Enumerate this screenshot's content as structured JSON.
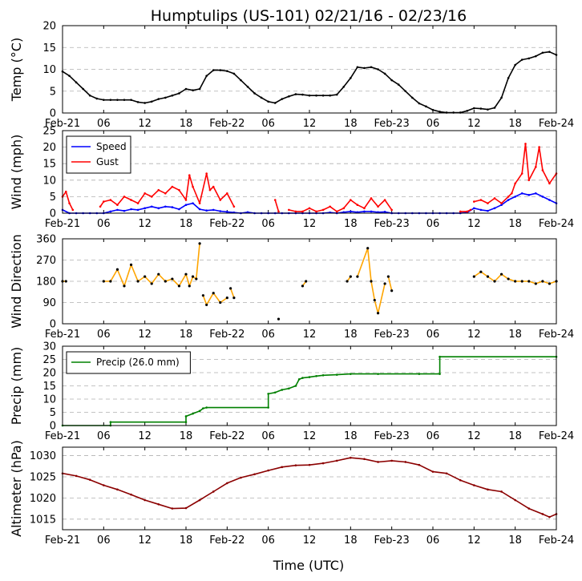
{
  "title": "Humptulips (US-101) 02/21/16 - 02/23/16",
  "xlabel": "Time (UTC)",
  "x_range_hours": [
    0,
    72
  ],
  "x_tick_hours": [
    0,
    6,
    12,
    18,
    24,
    30,
    36,
    42,
    48,
    54,
    60,
    66,
    72
  ],
  "x_tick_labels": [
    "Feb-21",
    "06",
    "12",
    "18",
    "Feb-22",
    "06",
    "12",
    "18",
    "Feb-23",
    "06",
    "12",
    "18",
    "Feb-24"
  ],
  "chart_data": [
    {
      "id": "temp",
      "type": "line",
      "ylabel": "Temp (°C)",
      "ylim": [
        0,
        20
      ],
      "yticks": [
        0,
        5,
        10,
        15,
        20
      ],
      "grid": true,
      "series": [
        {
          "name": "Temp",
          "color": "#000000",
          "x": [
            0,
            1,
            2,
            3,
            4,
            5,
            6,
            7,
            8,
            9,
            10,
            11,
            12,
            13,
            14,
            15,
            16,
            17,
            18,
            19,
            20,
            21,
            22,
            23,
            24,
            25,
            26,
            27,
            28,
            29,
            30,
            31,
            32,
            33,
            34,
            35,
            36,
            37,
            38,
            39,
            40,
            41,
            42,
            43,
            44,
            45,
            46,
            47,
            48,
            49,
            50,
            51,
            52,
            53,
            54,
            55,
            56,
            57,
            58,
            59,
            60,
            61,
            62,
            63,
            64,
            65,
            66,
            67,
            68,
            69,
            70,
            71,
            72
          ],
          "values": [
            9.5,
            8.5,
            7,
            5.5,
            4,
            3.3,
            3,
            3,
            3,
            3,
            3,
            2.5,
            2.3,
            2.6,
            3.2,
            3.5,
            4,
            4.5,
            5.5,
            5.2,
            5.5,
            8.5,
            9.8,
            9.8,
            9.6,
            9,
            7.5,
            6,
            4.5,
            3.5,
            2.6,
            2.3,
            3.2,
            3.8,
            4.3,
            4.2,
            4,
            4,
            4,
            4,
            4.2,
            6,
            8,
            10.5,
            10.3,
            10.5,
            10,
            9,
            7.5,
            6.5,
            5,
            3.5,
            2.2,
            1.5,
            0.7,
            0.3,
            0.1,
            0.1,
            0.1,
            0.5,
            1.1,
            1,
            0.8,
            1.2,
            3.5,
            8,
            11,
            12.2,
            12.5,
            13,
            13.8,
            14,
            13.3
          ]
        }
      ]
    },
    {
      "id": "wind",
      "type": "line",
      "ylabel": "Wind (mph)",
      "ylim": [
        0,
        25
      ],
      "yticks": [
        0,
        5,
        10,
        15,
        20,
        25
      ],
      "grid": true,
      "legend": "top-left",
      "series": [
        {
          "name": "Speed",
          "color": "#0000ff",
          "segments": [
            {
              "x": [
                0,
                1,
                2,
                3,
                4,
                5,
                6,
                7,
                8,
                9,
                10,
                11,
                12,
                13,
                14,
                15,
                16,
                17,
                18,
                19,
                20,
                21,
                22,
                23,
                24,
                25,
                26,
                27,
                28,
                29,
                30,
                31,
                32,
                33,
                34,
                35,
                36,
                37,
                38,
                39,
                40,
                41,
                42,
                43,
                44,
                45,
                46,
                47,
                48,
                49,
                50,
                51,
                52,
                53,
                54,
                55,
                56,
                57,
                58,
                59,
                60,
                61,
                62,
                63,
                64,
                65,
                66,
                67,
                68,
                69,
                70,
                71,
                72
              ],
              "values": [
                1,
                0,
                0,
                0,
                0,
                0,
                0,
                0.5,
                1,
                0.7,
                1.2,
                1,
                1.5,
                2,
                1.5,
                2,
                1.8,
                1.2,
                2.5,
                3,
                1.2,
                0.8,
                1,
                0.6,
                0.4,
                0.2,
                0,
                0.3,
                0,
                0,
                0,
                0,
                0,
                0,
                0,
                0,
                0,
                0,
                0,
                0.2,
                0,
                0.3,
                0.5,
                0.3,
                0.5,
                0.5,
                0.3,
                0.4,
                0,
                0,
                0,
                0,
                0,
                0,
                0,
                0,
                0,
                0,
                0,
                0.2,
                1.5,
                1,
                0.7,
                1.5,
                2.5,
                4,
                5,
                6,
                5.5,
                6,
                5,
                4,
                3
              ]
            }
          ]
        },
        {
          "name": "Gust",
          "color": "#ff0000",
          "segments": [
            {
              "x": [
                0,
                0.5,
                1,
                1.5
              ],
              "values": [
                5,
                6.5,
                3,
                1
              ]
            },
            {
              "x": [
                5.5,
                6,
                7,
                8,
                9,
                10,
                11,
                12,
                13,
                14,
                15,
                16,
                17,
                18,
                18.5,
                19,
                20,
                21,
                21.5,
                22,
                23,
                24,
                25
              ],
              "values": [
                2,
                3.5,
                4,
                2.5,
                5,
                4,
                3,
                6,
                5,
                7,
                6,
                8,
                7,
                4,
                11.5,
                8,
                3,
                12,
                7,
                8,
                4,
                6,
                2
              ]
            },
            {
              "x": [
                31,
                31.5
              ],
              "values": [
                4,
                0.5
              ]
            },
            {
              "x": [
                33,
                34,
                35,
                36,
                37,
                38,
                39,
                40,
                41,
                42,
                43,
                44,
                45,
                46,
                47,
                48
              ],
              "values": [
                1,
                0.5,
                0.5,
                1.5,
                0.5,
                1,
                2,
                0.5,
                1.5,
                4,
                2.5,
                1.5,
                4.5,
                2,
                4,
                1
              ]
            },
            {
              "x": [
                58,
                59,
                59.5
              ],
              "values": [
                0.5,
                0.5,
                1
              ]
            },
            {
              "x": [
                60,
                61,
                62,
                63,
                64,
                65,
                65.5,
                66,
                67,
                67.5,
                68,
                69,
                69.5,
                70,
                71,
                72
              ],
              "values": [
                3.5,
                4,
                3,
                4.5,
                3,
                5,
                6,
                9,
                12,
                21,
                10,
                14,
                20,
                13,
                9,
                12
              ]
            }
          ]
        }
      ]
    },
    {
      "id": "direction",
      "type": "scatter",
      "ylabel": "Wind Direction",
      "ylim": [
        0,
        360
      ],
      "yticks": [
        0,
        90,
        180,
        270,
        360
      ],
      "grid": true,
      "series": [
        {
          "name": "Direction",
          "color": "#ffa500",
          "segments": [
            {
              "x": [
                0,
                0.5
              ],
              "values": [
                180,
                180
              ]
            },
            {
              "x": [
                6,
                7,
                8,
                9,
                10,
                11,
                12,
                13,
                14,
                15,
                16,
                17,
                18,
                18.5,
                19,
                19.5,
                20
              ],
              "values": [
                180,
                180,
                230,
                160,
                250,
                180,
                200,
                170,
                210,
                180,
                190,
                160,
                210,
                160,
                200,
                190,
                340
              ]
            },
            {
              "x": [
                20.5,
                21,
                22,
                23,
                24
              ],
              "values": [
                120,
                80,
                130,
                90,
                110
              ]
            },
            {
              "x": [
                24.5,
                25
              ],
              "values": [
                150,
                110
              ]
            },
            {
              "x": [
                31.5
              ],
              "values": [
                20
              ]
            },
            {
              "x": [
                35,
                35.5
              ],
              "values": [
                160,
                180
              ]
            },
            {
              "x": [
                41.5,
                42
              ],
              "values": [
                180,
                200
              ]
            },
            {
              "x": [
                43,
                44.5,
                45,
                45.5,
                46,
                47
              ],
              "values": [
                200,
                320,
                180,
                100,
                45,
                170
              ]
            },
            {
              "x": [
                47.5,
                48
              ],
              "values": [
                200,
                140
              ]
            },
            {
              "x": [
                60,
                61,
                62,
                63,
                64,
                65,
                66,
                67,
                68,
                69,
                70,
                71,
                72
              ],
              "values": [
                200,
                220,
                200,
                180,
                210,
                190,
                180,
                180,
                180,
                170,
                180,
                170,
                180
              ]
            }
          ]
        }
      ]
    },
    {
      "id": "precip",
      "type": "line",
      "ylabel": "Precip (mm)",
      "ylim": [
        0,
        30
      ],
      "yticks": [
        0,
        5,
        10,
        15,
        20,
        25,
        30
      ],
      "grid": true,
      "legend": "top-left",
      "series": [
        {
          "name": "Precip (26.0 mm)",
          "color": "#008000",
          "x": [
            0,
            7,
            7,
            18,
            18,
            19,
            20,
            20.5,
            21,
            30,
            30,
            31,
            32,
            33,
            34,
            34.5,
            35,
            36,
            37,
            38,
            40,
            42,
            46,
            52,
            55,
            55,
            72
          ],
          "values": [
            0,
            0,
            1.3,
            1.3,
            3.5,
            4.5,
            5.5,
            6.5,
            6.8,
            6.8,
            12,
            12.5,
            13.5,
            14,
            15,
            17.5,
            18,
            18.3,
            18.7,
            19,
            19.2,
            19.5,
            19.5,
            19.5,
            19.5,
            26,
            26
          ]
        }
      ]
    },
    {
      "id": "altimeter",
      "type": "line",
      "ylabel": "Altimeter (hPa)",
      "ylim": [
        1012.5,
        1032
      ],
      "yticks": [
        1015,
        1020,
        1025,
        1030
      ],
      "grid": true,
      "series": [
        {
          "name": "Altimeter",
          "color": "#8b0000",
          "x": [
            0,
            2,
            4,
            6,
            8,
            10,
            12,
            14,
            16,
            18,
            20,
            22,
            24,
            26,
            28,
            30,
            32,
            34,
            36,
            38,
            40,
            42,
            44,
            46,
            48,
            50,
            52,
            54,
            56,
            58,
            60,
            62,
            64,
            66,
            68,
            70,
            71,
            72
          ],
          "values": [
            1025.8,
            1025.2,
            1024.3,
            1023,
            1022,
            1020.8,
            1019.5,
            1018.5,
            1017.5,
            1017.6,
            1019.5,
            1021.5,
            1023.5,
            1024.8,
            1025.6,
            1026.5,
            1027.3,
            1027.7,
            1027.8,
            1028.2,
            1028.8,
            1029.5,
            1029.2,
            1028.5,
            1028.8,
            1028.5,
            1027.8,
            1026.2,
            1025.8,
            1024.2,
            1023,
            1022,
            1021.5,
            1019.5,
            1017.5,
            1016.2,
            1015.5,
            1016.2
          ]
        }
      ]
    }
  ]
}
